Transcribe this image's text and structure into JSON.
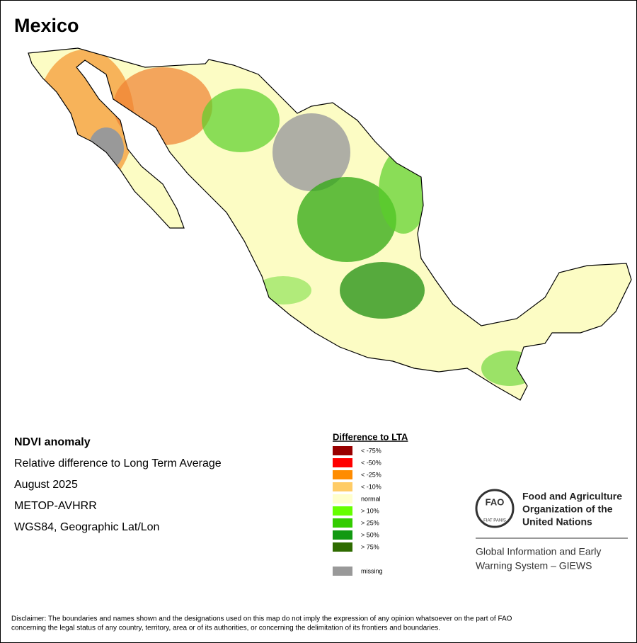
{
  "header": {
    "title": "Mexico"
  },
  "info": [
    "NDVI anomaly",
    "Relative difference to Long Term Average",
    "August 2025",
    "METOP-AVHRR",
    "WGS84, Geographic Lat/Lon"
  ],
  "legend": {
    "title": "Difference to LTA",
    "items": [
      {
        "label": "< -75%",
        "color": "#990000"
      },
      {
        "label": "< -50%",
        "color": "#ff0000"
      },
      {
        "label": "< -25%",
        "color": "#ff8c00"
      },
      {
        "label": "< -10%",
        "color": "#ffcc66"
      },
      {
        "label": "normal",
        "color": "#ffffcc"
      },
      {
        "label": "> 10%",
        "color": "#66ff00"
      },
      {
        "label": "> 25%",
        "color": "#33cc00"
      },
      {
        "label": "> 50%",
        "color": "#129912"
      },
      {
        "label": "> 75%",
        "color": "#2e6b00"
      },
      {
        "label": "missing",
        "color": "#999999"
      }
    ]
  },
  "fao": {
    "logo_letters": "FAO",
    "motto": "FIAT PANIS",
    "name": [
      "Food and Agriculture",
      "Organization of the",
      "United Nations"
    ],
    "giews": [
      "Global Information and Early",
      "Warning System – GIEWS"
    ]
  },
  "disclaimer": [
    "Disclaimer: The boundaries and names shown and the designations used on this map do not imply the expression of any opinion whatsoever on the part of FAO",
    "concerning the legal status of any country, territory, area or of its authorities, or concerning the delimitation of its frontiers and boundaries."
  ]
}
